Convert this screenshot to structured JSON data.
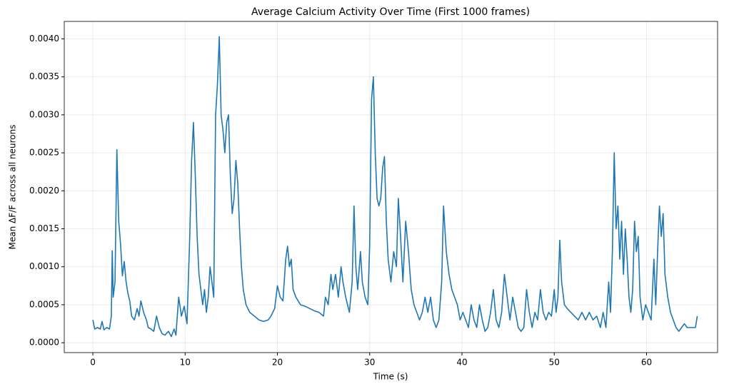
{
  "chart_data": {
    "type": "line",
    "title": "Average Calcium Activity Over Time (First 1000 frames)",
    "x_label": "Time (s)",
    "y_label": "Mean ΔF/F across all neurons",
    "color": "#1f77b4",
    "grid": true,
    "xlim": [
      -3.1,
      67.7
    ],
    "ylim": [
      -0.00013,
      0.00423
    ],
    "xticks": [
      0,
      10,
      20,
      30,
      40,
      50,
      60
    ],
    "yticks": [
      {
        "value": 0,
        "label": "0.0000"
      },
      {
        "value": 0.0005,
        "label": "0.0005"
      },
      {
        "value": 0.001,
        "label": "0.0010"
      },
      {
        "value": 0.0015,
        "label": "0.0015"
      },
      {
        "value": 0.002,
        "label": "0.0020"
      },
      {
        "value": 0.0025,
        "label": "0.0025"
      },
      {
        "value": 0.003,
        "label": "0.0030"
      },
      {
        "value": 0.0035,
        "label": "0.0035"
      },
      {
        "value": 0.004,
        "label": "0.0040"
      }
    ],
    "x": [
      0,
      0.2,
      0.5,
      0.8,
      1.0,
      1.2,
      1.5,
      1.8,
      2.0,
      2.1,
      2.2,
      2.4,
      2.6,
      2.8,
      3.0,
      3.2,
      3.4,
      3.6,
      3.8,
      4.0,
      4.2,
      4.5,
      4.8,
      5.0,
      5.2,
      5.5,
      5.8,
      6.0,
      6.3,
      6.6,
      6.9,
      7.2,
      7.5,
      7.8,
      8.2,
      8.5,
      8.8,
      9.0,
      9.3,
      9.6,
      9.9,
      10.2,
      10.5,
      10.7,
      10.9,
      11.1,
      11.3,
      11.5,
      11.7,
      11.9,
      12.1,
      12.3,
      12.5,
      12.7,
      12.9,
      13.1,
      13.3,
      13.5,
      13.7,
      13.9,
      14.1,
      14.3,
      14.5,
      14.7,
      14.9,
      15.1,
      15.3,
      15.5,
      15.7,
      15.9,
      16.1,
      16.3,
      16.6,
      17.0,
      17.5,
      18.0,
      18.5,
      19.0,
      19.3,
      19.7,
      20.0,
      20.3,
      20.6,
      20.9,
      21.1,
      21.3,
      21.5,
      21.7,
      22.0,
      22.5,
      23.0,
      23.5,
      24.0,
      24.5,
      25.0,
      25.2,
      25.5,
      25.8,
      26.0,
      26.3,
      26.6,
      26.9,
      27.1,
      27.4,
      27.8,
      28.1,
      28.3,
      28.5,
      28.7,
      29.0,
      29.2,
      29.5,
      29.8,
      30.0,
      30.2,
      30.4,
      30.6,
      30.8,
      31.0,
      31.2,
      31.4,
      31.6,
      31.8,
      32.0,
      32.3,
      32.6,
      32.9,
      33.1,
      33.3,
      33.6,
      33.9,
      34.2,
      34.5,
      34.8,
      35.1,
      35.4,
      35.7,
      36.0,
      36.3,
      36.6,
      36.9,
      37.2,
      37.5,
      37.8,
      38.0,
      38.3,
      38.6,
      38.9,
      39.2,
      39.5,
      39.8,
      40.1,
      40.4,
      40.7,
      41.0,
      41.3,
      41.6,
      41.9,
      42.2,
      42.5,
      42.8,
      43.1,
      43.4,
      43.7,
      44.0,
      44.3,
      44.6,
      44.9,
      45.2,
      45.5,
      45.8,
      46.1,
      46.4,
      46.7,
      47.0,
      47.3,
      47.6,
      47.9,
      48.2,
      48.5,
      48.8,
      49.1,
      49.4,
      49.7,
      50.0,
      50.2,
      50.4,
      50.6,
      50.8,
      51.1,
      51.4,
      51.8,
      52.2,
      52.6,
      53.0,
      53.4,
      53.8,
      54.2,
      54.6,
      55.0,
      55.3,
      55.6,
      55.9,
      56.1,
      56.3,
      56.5,
      56.7,
      56.9,
      57.1,
      57.3,
      57.5,
      57.7,
      57.9,
      58.1,
      58.3,
      58.5,
      58.7,
      58.9,
      59.1,
      59.3,
      59.6,
      59.9,
      60.2,
      60.5,
      60.8,
      61.0,
      61.2,
      61.4,
      61.6,
      61.8,
      62.0,
      62.3,
      62.6,
      62.9,
      63.2,
      63.5,
      63.8,
      64.1,
      64.4,
      64.7,
      65.0,
      65.3,
      65.5
    ],
    "values": [
      0.0003,
      0.00018,
      0.0002,
      0.00018,
      0.00028,
      0.00017,
      0.0002,
      0.00018,
      0.00035,
      0.00121,
      0.0006,
      0.0008,
      0.00254,
      0.0016,
      0.0013,
      0.00088,
      0.00107,
      0.0008,
      0.00065,
      0.00055,
      0.00035,
      0.0003,
      0.00045,
      0.00035,
      0.00055,
      0.0004,
      0.0003,
      0.0002,
      0.00018,
      0.00015,
      0.00035,
      0.0002,
      0.00012,
      0.0001,
      0.00015,
      8e-05,
      0.00018,
      0.0001,
      0.0006,
      0.00035,
      0.00048,
      0.00025,
      0.0014,
      0.0024,
      0.0029,
      0.0022,
      0.0014,
      0.0009,
      0.0007,
      0.0005,
      0.0007,
      0.0004,
      0.0006,
      0.001,
      0.0008,
      0.0006,
      0.003,
      0.0034,
      0.00403,
      0.003,
      0.0028,
      0.0025,
      0.0029,
      0.003,
      0.0022,
      0.0017,
      0.0019,
      0.0024,
      0.0021,
      0.0015,
      0.001,
      0.0007,
      0.0005,
      0.0004,
      0.00035,
      0.0003,
      0.00028,
      0.0003,
      0.00035,
      0.00045,
      0.00075,
      0.0006,
      0.00055,
      0.0011,
      0.00127,
      0.001,
      0.0011,
      0.0007,
      0.0006,
      0.0005,
      0.00048,
      0.00045,
      0.00042,
      0.0004,
      0.00035,
      0.0006,
      0.0005,
      0.0009,
      0.0007,
      0.0009,
      0.0006,
      0.001,
      0.0008,
      0.0006,
      0.0004,
      0.0008,
      0.0018,
      0.001,
      0.0007,
      0.0012,
      0.0008,
      0.0006,
      0.0005,
      0.0013,
      0.0032,
      0.0035,
      0.0025,
      0.0019,
      0.0018,
      0.0019,
      0.0023,
      0.00245,
      0.0016,
      0.0011,
      0.0008,
      0.0012,
      0.001,
      0.0019,
      0.0015,
      0.0008,
      0.0016,
      0.0012,
      0.0007,
      0.0005,
      0.0004,
      0.0003,
      0.0004,
      0.0006,
      0.0004,
      0.0006,
      0.0003,
      0.0002,
      0.0003,
      0.0008,
      0.0018,
      0.0012,
      0.0009,
      0.0007,
      0.0006,
      0.0005,
      0.0003,
      0.0004,
      0.0003,
      0.0002,
      0.0005,
      0.0003,
      0.0002,
      0.0005,
      0.0003,
      0.00015,
      0.0002,
      0.0004,
      0.0007,
      0.0003,
      0.0002,
      0.0004,
      0.0009,
      0.0006,
      0.0003,
      0.0006,
      0.0004,
      0.0002,
      0.00015,
      0.0002,
      0.0007,
      0.0004,
      0.0002,
      0.0004,
      0.0003,
      0.0007,
      0.0004,
      0.0003,
      0.0004,
      0.00035,
      0.0007,
      0.0004,
      0.0006,
      0.00135,
      0.0008,
      0.0005,
      0.00045,
      0.0004,
      0.00035,
      0.0003,
      0.0004,
      0.0003,
      0.0004,
      0.0003,
      0.00035,
      0.0002,
      0.0004,
      0.0002,
      0.0008,
      0.0004,
      0.0012,
      0.0025,
      0.0015,
      0.0018,
      0.0011,
      0.0016,
      0.0009,
      0.0015,
      0.0011,
      0.0006,
      0.0004,
      0.0007,
      0.0016,
      0.0012,
      0.0014,
      0.0006,
      0.0003,
      0.0005,
      0.0004,
      0.0003,
      0.0011,
      0.0005,
      0.0012,
      0.0018,
      0.0014,
      0.0017,
      0.0009,
      0.0006,
      0.0004,
      0.0003,
      0.0002,
      0.00015,
      0.0002,
      0.00025,
      0.0002,
      0.0002,
      0.0002,
      0.0002,
      0.00035
    ]
  }
}
